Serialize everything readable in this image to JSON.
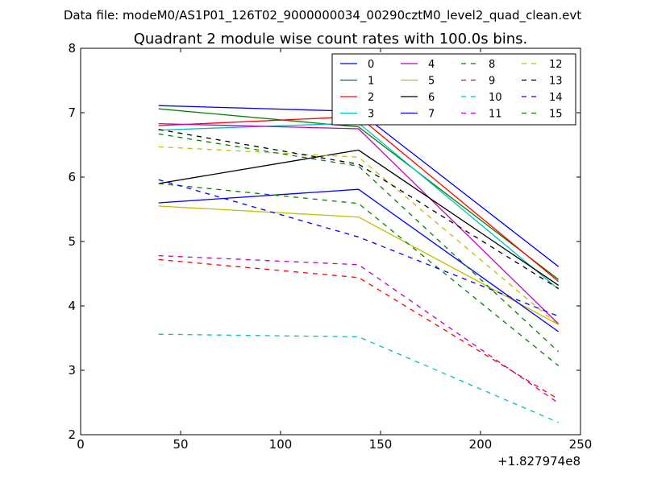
{
  "figure": {
    "suptitle": "Data file: modeM0/AS1P01_126T02_9000000034_00290cztM0_level2_quad_clean.evt",
    "title": "Quadrant 2 module wise count rates with 100.0s bins.",
    "x_offset_label": "+1.827974e8"
  },
  "chart_data": {
    "type": "line",
    "title": "Quadrant 2 module wise count rates with 100.0s bins.",
    "xlabel": "",
    "ylabel": "",
    "xlim": [
      0,
      250
    ],
    "ylim": [
      2,
      8
    ],
    "xticks": [
      0,
      50,
      100,
      150,
      200,
      250
    ],
    "yticks": [
      2,
      3,
      4,
      5,
      6,
      7,
      8
    ],
    "x": [
      39,
      139,
      239
    ],
    "legend_position": "top-right",
    "legend_columns": 4,
    "series": [
      {
        "name": "0",
        "values": [
          7.11,
          7.02,
          4.61
        ],
        "color": "#0000ff",
        "style": "solid"
      },
      {
        "name": "1",
        "values": [
          7.06,
          6.78,
          4.41
        ],
        "color": "#008000",
        "style": "solid"
      },
      {
        "name": "2",
        "values": [
          6.8,
          6.94,
          4.38
        ],
        "color": "#ff0000",
        "style": "solid"
      },
      {
        "name": "3",
        "values": [
          6.73,
          6.84,
          4.26
        ],
        "color": "#00bfbf",
        "style": "solid"
      },
      {
        "name": "4",
        "values": [
          6.83,
          6.75,
          3.72
        ],
        "color": "#bf00bf",
        "style": "solid"
      },
      {
        "name": "5",
        "values": [
          5.55,
          5.38,
          3.71
        ],
        "color": "#bfbf00",
        "style": "solid"
      },
      {
        "name": "6",
        "values": [
          5.9,
          6.42,
          4.32
        ],
        "color": "#000000",
        "style": "solid"
      },
      {
        "name": "7",
        "values": [
          5.6,
          5.81,
          3.6
        ],
        "color": "#0000ff",
        "style": "solid"
      },
      {
        "name": "8",
        "values": [
          5.9,
          5.59,
          3.07
        ],
        "color": "#008000",
        "style": "dashed"
      },
      {
        "name": "9",
        "values": [
          4.72,
          4.44,
          2.55
        ],
        "color": "#ff0000",
        "style": "dashed"
      },
      {
        "name": "10",
        "values": [
          3.56,
          3.52,
          2.19
        ],
        "color": "#00bfbf",
        "style": "dashed"
      },
      {
        "name": "11",
        "values": [
          4.78,
          4.64,
          2.49
        ],
        "color": "#bf00bf",
        "style": "dashed"
      },
      {
        "name": "12",
        "values": [
          6.47,
          6.31,
          3.7
        ],
        "color": "#bfbf00",
        "style": "dashed"
      },
      {
        "name": "13",
        "values": [
          6.74,
          6.2,
          4.27
        ],
        "color": "#000000",
        "style": "dashed"
      },
      {
        "name": "14",
        "values": [
          5.96,
          5.07,
          3.84
        ],
        "color": "#0000ff",
        "style": "dashed"
      },
      {
        "name": "15",
        "values": [
          6.67,
          6.17,
          3.29
        ],
        "color": "#008000",
        "style": "dashed"
      }
    ]
  }
}
